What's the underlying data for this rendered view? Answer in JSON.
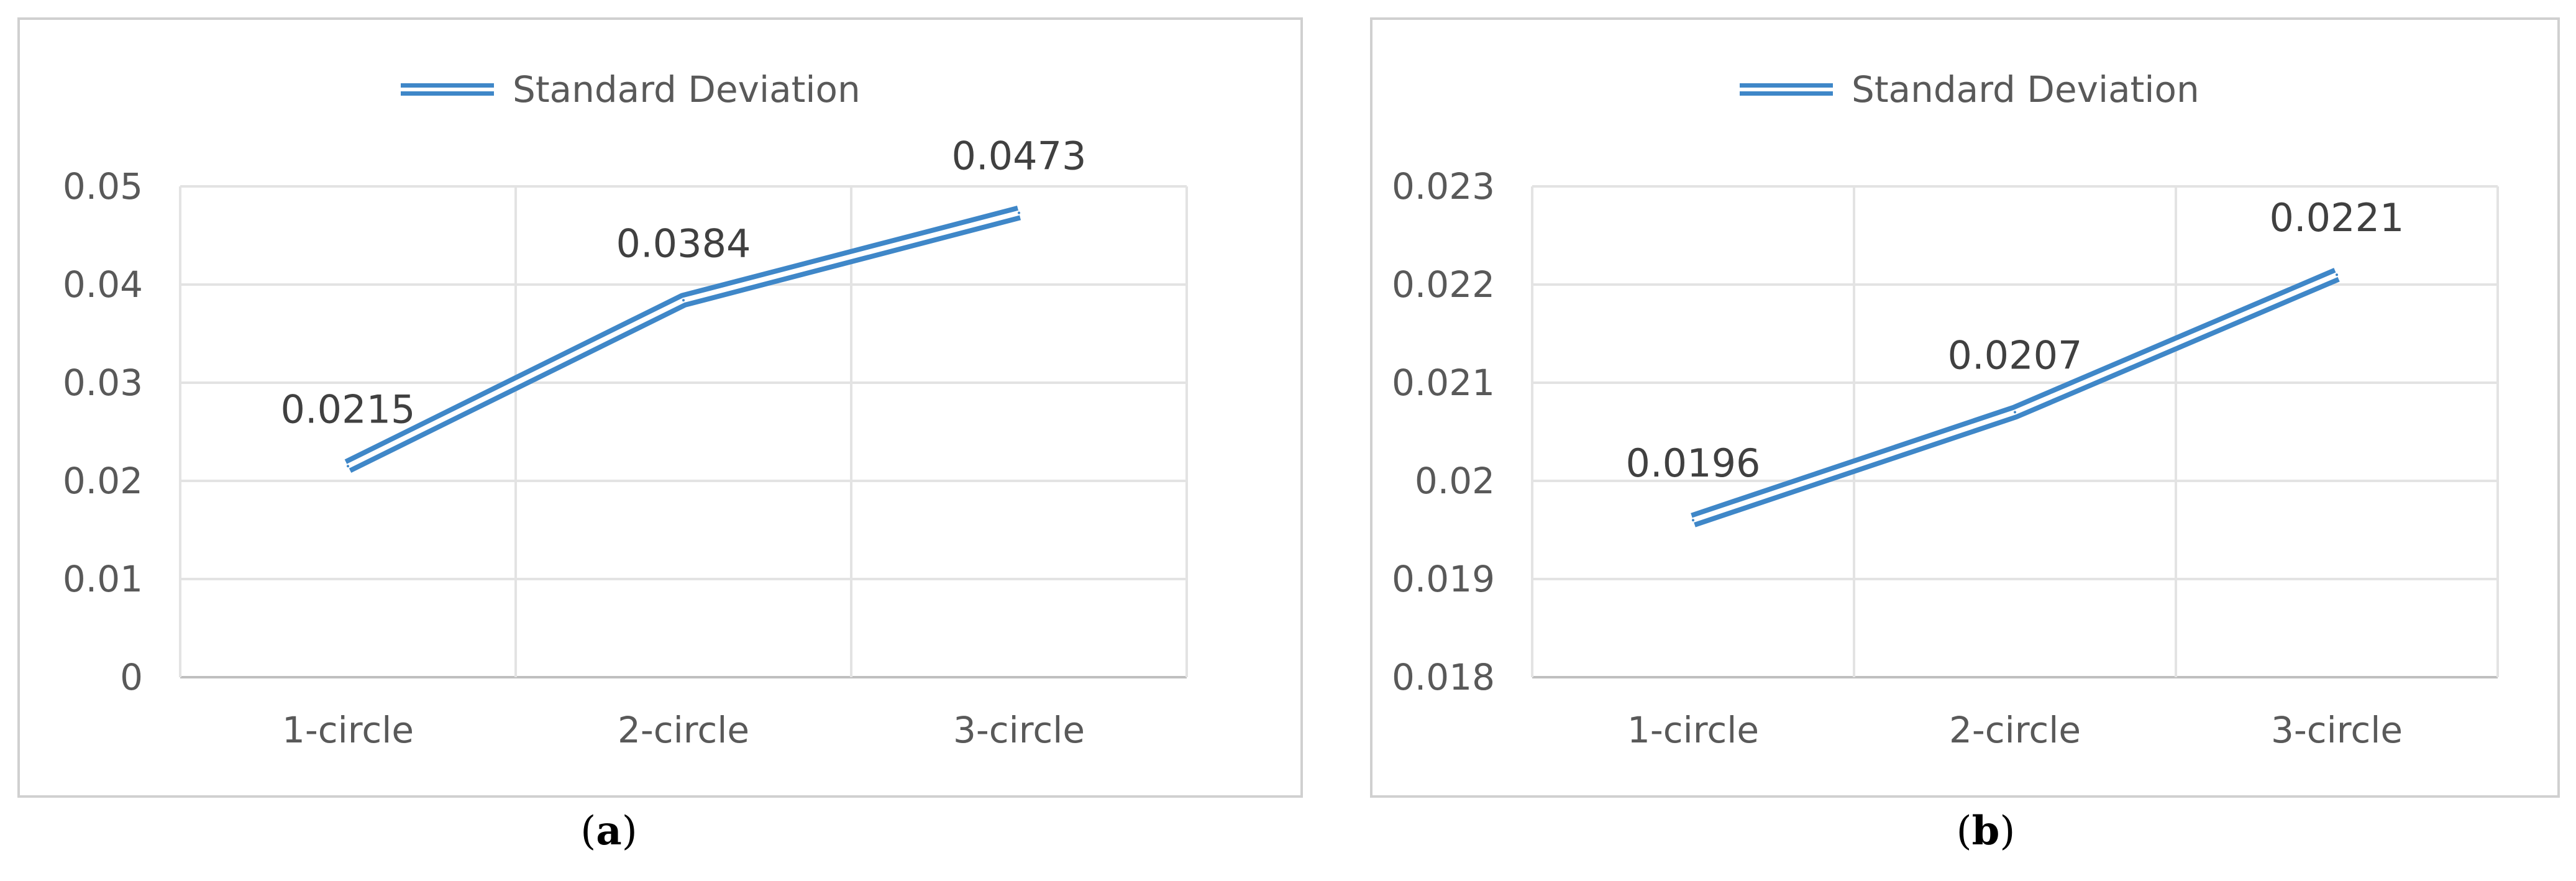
{
  "chart_data": [
    {
      "type": "line",
      "caption": "a",
      "legend": "Standard Deviation",
      "legend_position": "top",
      "categories": [
        "1-circle",
        "2-circle",
        "3-circle"
      ],
      "series": [
        {
          "name": "Standard Deviation",
          "values": [
            0.0215,
            0.0384,
            0.0473
          ],
          "data_labels": [
            "0.0215",
            "0.0384",
            "0.0473"
          ]
        }
      ],
      "ylim": [
        0,
        0.05
      ],
      "yticks": [
        "0",
        "0.01",
        "0.02",
        "0.03",
        "0.04",
        "0.05"
      ],
      "grid": true,
      "line_color": "#3f87c8"
    },
    {
      "type": "line",
      "caption": "b",
      "legend": "Standard Deviation",
      "legend_position": "top",
      "categories": [
        "1-circle",
        "2-circle",
        "3-circle"
      ],
      "series": [
        {
          "name": "Standard Deviation",
          "values": [
            0.0196,
            0.0207,
            0.0221
          ],
          "data_labels": [
            "0.0196",
            "0.0207",
            "0.0221"
          ]
        }
      ],
      "ylim": [
        0.018,
        0.023
      ],
      "yticks": [
        "0.018",
        "0.019",
        "0.02",
        "0.021",
        "0.022",
        "0.023"
      ],
      "grid": true,
      "line_color": "#3f87c8"
    }
  ]
}
